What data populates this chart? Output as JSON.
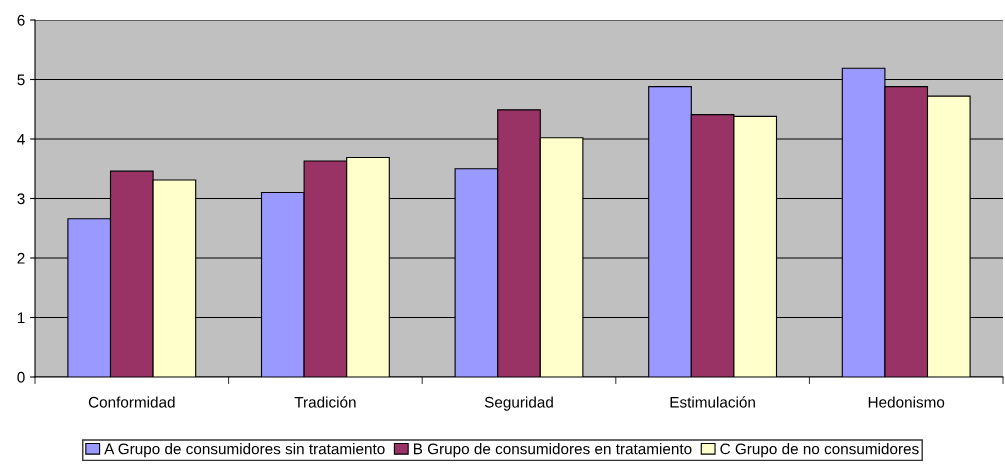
{
  "chart_data": {
    "type": "bar",
    "categories": [
      "Conformidad",
      "Tradición",
      "Seguridad",
      "Estimulación",
      "Hedonismo"
    ],
    "series": [
      {
        "name": "A Grupo de consumidores sin tratamiento",
        "color": "#9999ff",
        "values": [
          2.66,
          3.1,
          3.5,
          4.88,
          5.19
        ]
      },
      {
        "name": "B Grupo de consumidores en tratamiento",
        "color": "#993366",
        "values": [
          3.46,
          3.63,
          4.49,
          4.41,
          4.88
        ]
      },
      {
        "name": "C Grupo de no consumidores",
        "color": "#ffffcc",
        "values": [
          3.31,
          3.69,
          4.02,
          4.38,
          4.72
        ]
      }
    ],
    "ylim": [
      0,
      6
    ],
    "yticks": [
      0,
      1,
      2,
      3,
      4,
      5,
      6
    ],
    "grid": "y",
    "legend": "bottom"
  }
}
